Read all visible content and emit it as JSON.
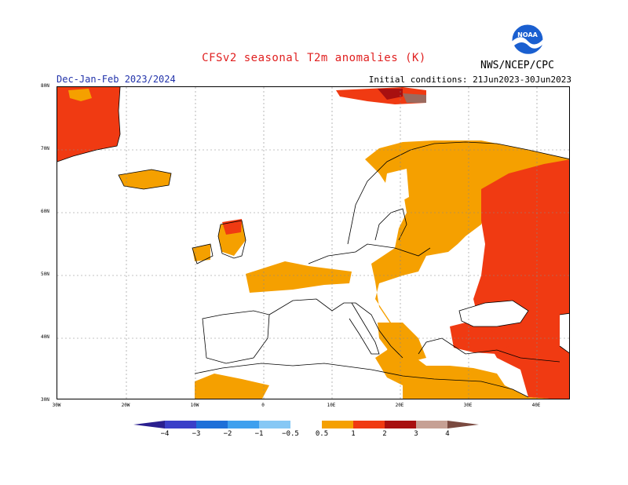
{
  "logo_text": "NOAA",
  "agency": "NWS/NCEP/CPC",
  "title": "CFSv2 seasonal T2m anomalies (K)",
  "season": "Dec-Jan-Feb 2023/2024",
  "init": "Initial conditions: 21Jun2023-30Jun2023",
  "lat_labels": [
    "80N",
    "70N",
    "60N",
    "50N",
    "40N",
    "30N"
  ],
  "lon_labels": [
    "30W",
    "20W",
    "10W",
    "0",
    "10E",
    "20E",
    "30E",
    "40E"
  ],
  "colorbar": {
    "ticks": [
      "−4",
      "−3",
      "−2",
      "−1",
      "−0.5",
      "0.5",
      "1",
      "2",
      "3",
      "4"
    ],
    "colors": [
      "#2a1f8f",
      "#3a3fc8",
      "#1e6fd8",
      "#3fa0ee",
      "#86c8f5",
      "#ffffff",
      "#f5a000",
      "#f03a12",
      "#c8200a",
      "#9a0a0a",
      "#c6a094",
      "#7a4a40"
    ]
  },
  "colors": {
    "orange": "#f5a000",
    "red": "#f03a12",
    "darkred": "#a81010",
    "brown": "#9b6a5e"
  }
}
